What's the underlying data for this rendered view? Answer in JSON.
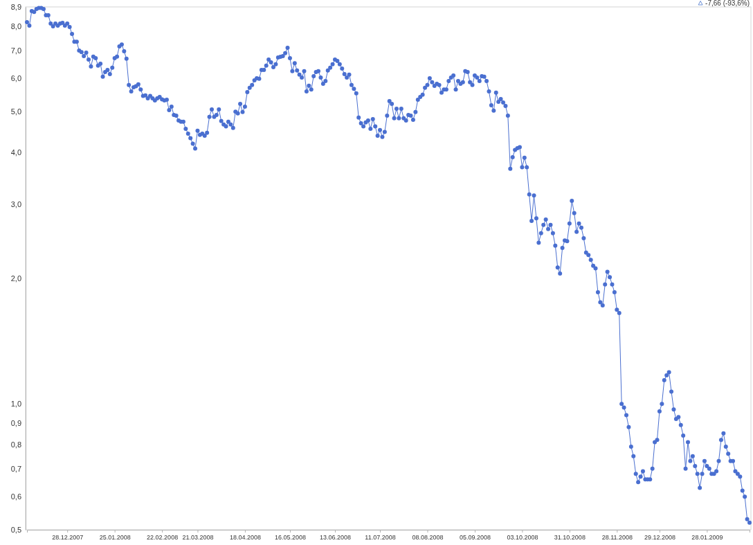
{
  "chart_data": {
    "type": "line",
    "log": true,
    "marker": "circle",
    "color": "#4a6fd0",
    "annotations": [
      "-7,66 (-93,6%)"
    ],
    "ylim": [
      0.5,
      8.9
    ],
    "yticks": [
      {
        "value": 0.5,
        "label": "0,5"
      },
      {
        "value": 0.6,
        "label": "0,6"
      },
      {
        "value": 0.7,
        "label": "0,7"
      },
      {
        "value": 0.8,
        "label": "0,8"
      },
      {
        "value": 0.9,
        "label": "0,9"
      },
      {
        "value": 1,
        "label": "1,0"
      },
      {
        "value": 2,
        "label": "2,0"
      },
      {
        "value": 3,
        "label": "3,0"
      },
      {
        "value": 4,
        "label": "4,0"
      },
      {
        "value": 5,
        "label": "5,0"
      },
      {
        "value": 6,
        "label": "6,0"
      },
      {
        "value": 7,
        "label": "7,0"
      },
      {
        "value": 8,
        "label": "8,0"
      },
      {
        "value": 8.9,
        "label": "8,9"
      }
    ],
    "categories": [
      null,
      null,
      null,
      null,
      null,
      null,
      null,
      null,
      null,
      null,
      null,
      null,
      null,
      null,
      null,
      null,
      null,
      "28.12.2007",
      null,
      null,
      null,
      null,
      null,
      null,
      null,
      null,
      null,
      null,
      null,
      null,
      null,
      null,
      null,
      null,
      null,
      null,
      null,
      "25.01.2008",
      null,
      null,
      null,
      null,
      null,
      null,
      null,
      null,
      null,
      null,
      null,
      null,
      null,
      null,
      null,
      null,
      null,
      null,
      null,
      "22.02.2008",
      null,
      null,
      null,
      null,
      null,
      null,
      null,
      null,
      null,
      null,
      null,
      null,
      null,
      null,
      "21.03.2008",
      null,
      null,
      null,
      null,
      null,
      null,
      null,
      null,
      null,
      null,
      null,
      null,
      null,
      null,
      null,
      null,
      null,
      null,
      null,
      "18.04.2008",
      null,
      null,
      null,
      null,
      null,
      null,
      null,
      null,
      null,
      null,
      null,
      null,
      null,
      null,
      null,
      null,
      null,
      null,
      "16.05.2008",
      null,
      null,
      null,
      null,
      null,
      null,
      null,
      null,
      null,
      null,
      null,
      null,
      null,
      null,
      null,
      null,
      null,
      null,
      "13.06.2008",
      null,
      null,
      null,
      null,
      null,
      null,
      null,
      null,
      null,
      null,
      null,
      null,
      null,
      null,
      null,
      null,
      null,
      null,
      "11.07.2008",
      null,
      null,
      null,
      null,
      null,
      null,
      null,
      null,
      null,
      null,
      null,
      null,
      null,
      null,
      null,
      null,
      null,
      null,
      null,
      "08.08.2008",
      null,
      null,
      null,
      null,
      null,
      null,
      null,
      null,
      null,
      null,
      null,
      null,
      null,
      null,
      null,
      null,
      null,
      null,
      null,
      "05.09.2008",
      null,
      null,
      null,
      null,
      null,
      null,
      null,
      null,
      null,
      null,
      null,
      null,
      null,
      null,
      null,
      null,
      null,
      null,
      null,
      "03.10.2008",
      null,
      null,
      null,
      null,
      null,
      null,
      null,
      null,
      null,
      null,
      null,
      null,
      null,
      null,
      null,
      null,
      null,
      null,
      null,
      "31.10.2008",
      null,
      null,
      null,
      null,
      null,
      null,
      null,
      null,
      null,
      null,
      null,
      null,
      null,
      null,
      null,
      null,
      null,
      null,
      null,
      "28.11.2008",
      null,
      null,
      null,
      null,
      null,
      null,
      null,
      null,
      null,
      null,
      null,
      null,
      null,
      null,
      null,
      null,
      null,
      "29.12.2008",
      null,
      null,
      null,
      null,
      null,
      null,
      null,
      null,
      null,
      null,
      null,
      null,
      null,
      null,
      null,
      null,
      null,
      null,
      null,
      "28.01.2009",
      null,
      null,
      null,
      null,
      null,
      null,
      null,
      null,
      null,
      null,
      null,
      null,
      null,
      null,
      null,
      null,
      null,
      null
    ],
    "values": [
      8.18,
      8.03,
      8.7,
      8.66,
      8.8,
      8.85,
      8.85,
      8.8,
      8.5,
      8.5,
      8.12,
      8.0,
      8.12,
      8.03,
      8.12,
      8.15,
      8.03,
      8.12,
      7.97,
      7.67,
      7.35,
      7.35,
      7.0,
      6.94,
      6.79,
      6.92,
      6.66,
      6.41,
      6.77,
      6.71,
      6.44,
      6.51,
      6.06,
      6.22,
      6.29,
      6.15,
      6.37,
      6.71,
      6.77,
      7.16,
      7.24,
      6.97,
      6.69,
      5.79,
      5.59,
      5.72,
      5.75,
      5.81,
      5.65,
      5.45,
      5.47,
      5.38,
      5.45,
      5.38,
      5.32,
      5.38,
      5.42,
      5.35,
      5.32,
      5.34,
      5.04,
      5.14,
      4.91,
      4.89,
      4.76,
      4.73,
      4.73,
      4.55,
      4.43,
      4.32,
      4.19,
      4.08,
      4.5,
      4.4,
      4.43,
      4.38,
      4.45,
      4.86,
      5.06,
      4.86,
      4.91,
      5.06,
      4.75,
      4.66,
      4.61,
      4.73,
      4.66,
      4.57,
      5.0,
      4.95,
      5.22,
      4.99,
      5.14,
      5.57,
      5.7,
      5.79,
      5.94,
      6.01,
      5.99,
      6.29,
      6.29,
      6.44,
      6.66,
      6.56,
      6.39,
      6.49,
      6.74,
      6.76,
      6.79,
      6.9,
      7.11,
      6.71,
      6.25,
      6.53,
      6.27,
      6.13,
      6.03,
      6.25,
      5.59,
      5.77,
      5.65,
      6.08,
      6.22,
      6.25,
      6.03,
      5.83,
      5.92,
      6.27,
      6.37,
      6.49,
      6.66,
      6.61,
      6.49,
      6.34,
      6.15,
      6.03,
      6.13,
      5.79,
      5.67,
      5.53,
      4.84,
      4.69,
      4.61,
      4.71,
      4.76,
      4.55,
      4.8,
      4.61,
      4.38,
      4.52,
      4.35,
      4.47,
      4.89,
      5.3,
      5.22,
      4.82,
      5.08,
      4.82,
      5.08,
      4.82,
      4.76,
      4.91,
      4.89,
      4.78,
      4.99,
      5.34,
      5.42,
      5.49,
      5.7,
      5.79,
      6.01,
      5.88,
      5.76,
      5.83,
      5.79,
      5.55,
      5.65,
      5.65,
      5.92,
      6.03,
      6.1,
      5.65,
      5.92,
      5.83,
      5.88,
      6.25,
      6.22,
      5.88,
      5.79,
      6.1,
      6.03,
      5.92,
      6.08,
      6.06,
      5.92,
      5.59,
      5.18,
      5.03,
      5.55,
      5.28,
      5.36,
      5.26,
      5.16,
      4.89,
      3.65,
      3.89,
      4.05,
      4.09,
      4.11,
      3.68,
      3.88,
      3.68,
      3.17,
      2.74,
      3.15,
      2.78,
      2.43,
      2.56,
      2.68,
      2.76,
      2.62,
      2.68,
      2.56,
      2.39,
      2.12,
      2.05,
      2.36,
      2.46,
      2.45,
      2.7,
      3.06,
      2.86,
      2.58,
      2.7,
      2.64,
      2.49,
      2.3,
      2.27,
      2.21,
      2.14,
      2.11,
      1.85,
      1.75,
      1.72,
      1.93,
      2.07,
      2.01,
      1.93,
      1.85,
      1.68,
      1.65,
      1.0,
      0.98,
      0.94,
      0.88,
      0.79,
      0.75,
      0.68,
      0.65,
      0.67,
      0.69,
      0.66,
      0.66,
      0.66,
      0.7,
      0.81,
      0.82,
      0.96,
      1.0,
      1.14,
      1.17,
      1.19,
      1.07,
      0.97,
      0.92,
      0.93,
      0.89,
      0.84,
      0.7,
      0.81,
      0.73,
      0.75,
      0.71,
      0.68,
      0.63,
      0.68,
      0.73,
      0.71,
      0.7,
      0.68,
      0.68,
      0.69,
      0.73,
      0.82,
      0.85,
      0.79,
      0.76,
      0.73,
      0.73,
      0.69,
      0.68,
      0.67,
      0.62,
      0.6,
      0.53,
      0.52
    ]
  }
}
